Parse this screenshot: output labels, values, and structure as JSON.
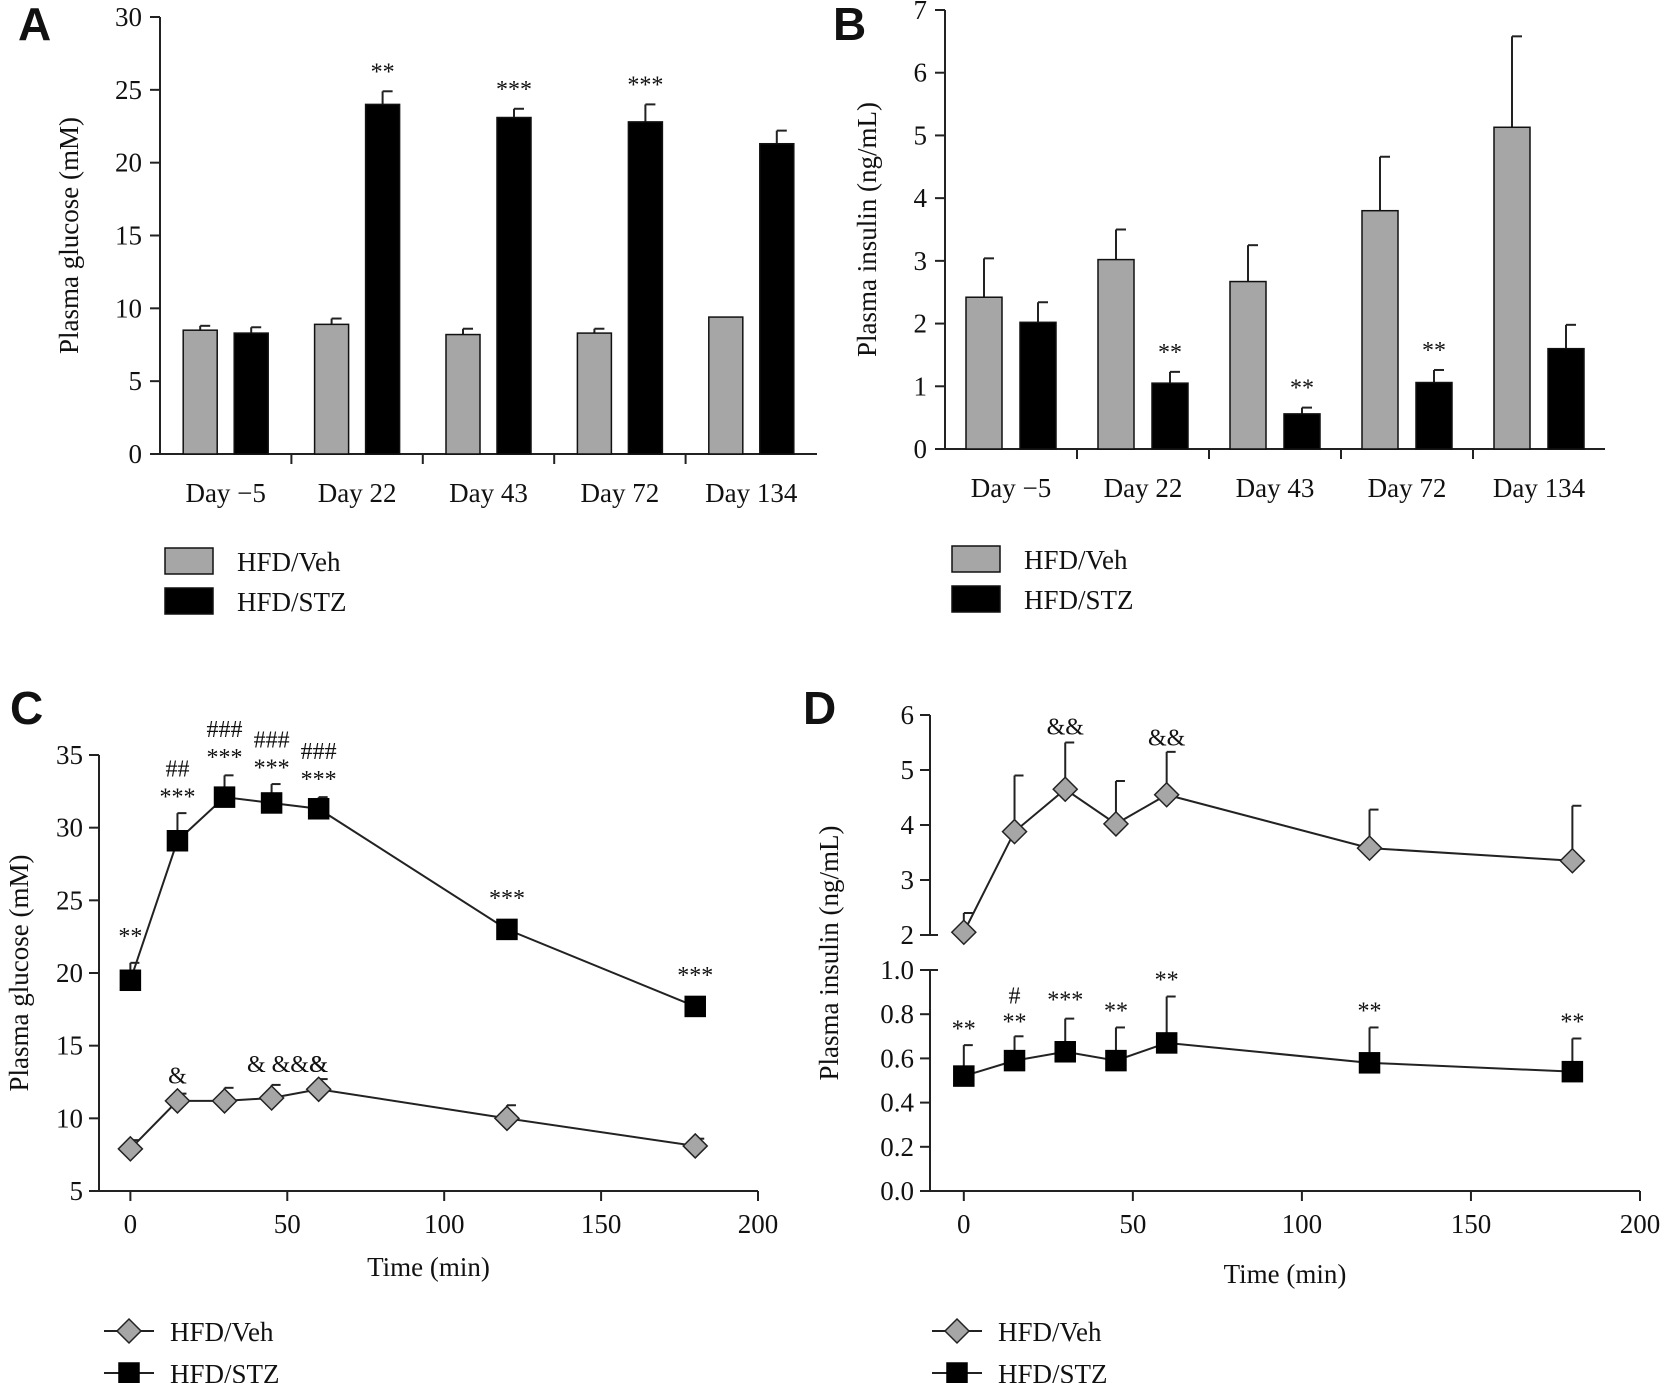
{
  "colors": {
    "veh": "#a6a6a6",
    "stz": "#000000",
    "axis": "#222222"
  },
  "chart_data": [
    {
      "panel": "A",
      "type": "bar",
      "ylabel": "Plasma glucose (mM)",
      "ylim": [
        0,
        30
      ],
      "yticks": [
        "0",
        "5",
        "10",
        "15",
        "20",
        "25",
        "30"
      ],
      "categories": [
        "Day −5",
        "Day 22",
        "Day 43",
        "Day 72",
        "Day 134"
      ],
      "series": [
        {
          "name": "HFD/Veh",
          "color": "#a6a6a6",
          "values": [
            8.5,
            8.9,
            8.2,
            8.3,
            9.4
          ],
          "errors": [
            0.3,
            0.4,
            0.4,
            0.3,
            0
          ]
        },
        {
          "name": "HFD/STZ",
          "color": "#000000",
          "values": [
            8.3,
            24.0,
            23.1,
            22.8,
            21.3
          ],
          "errors": [
            0.4,
            0.9,
            0.6,
            1.2,
            0.9
          ]
        }
      ],
      "annotations": [
        {
          "series": 1,
          "index": 1,
          "text": "**"
        },
        {
          "series": 1,
          "index": 2,
          "text": "***"
        },
        {
          "series": 1,
          "index": 3,
          "text": "***"
        }
      ],
      "legend": [
        "HFD/Veh",
        "HFD/STZ"
      ]
    },
    {
      "panel": "B",
      "type": "bar",
      "ylabel": "Plasma insulin (ng/mL)",
      "ylim": [
        0,
        7
      ],
      "yticks": [
        "0",
        "1",
        "2",
        "3",
        "4",
        "5",
        "6",
        "7"
      ],
      "categories": [
        "Day −5",
        "Day 22",
        "Day 43",
        "Day 72",
        "Day 134"
      ],
      "series": [
        {
          "name": "HFD/Veh",
          "color": "#a6a6a6",
          "values": [
            2.42,
            3.02,
            2.67,
            3.8,
            5.13
          ],
          "errors": [
            0.62,
            0.48,
            0.58,
            0.86,
            1.45
          ]
        },
        {
          "name": "HFD/STZ",
          "color": "#000000",
          "values": [
            2.02,
            1.05,
            0.56,
            1.06,
            1.6
          ],
          "errors": [
            0.32,
            0.18,
            0.1,
            0.2,
            0.38
          ]
        }
      ],
      "annotations": [
        {
          "series": 1,
          "index": 1,
          "text": "**"
        },
        {
          "series": 1,
          "index": 2,
          "text": "**"
        },
        {
          "series": 1,
          "index": 3,
          "text": "**"
        }
      ],
      "legend": [
        "HFD/Veh",
        "HFD/STZ"
      ]
    },
    {
      "panel": "C",
      "type": "line",
      "xlabel": "Time (min)",
      "ylabel": "Plasma glucose (mM)",
      "xlim": [
        -10,
        200
      ],
      "ylim": [
        5,
        35
      ],
      "xticks": [
        "0",
        "50",
        "100",
        "150",
        "200"
      ],
      "yticks": [
        "5",
        "10",
        "15",
        "20",
        "25",
        "30",
        "35"
      ],
      "x": [
        0,
        15,
        30,
        45,
        60,
        120,
        180
      ],
      "series": [
        {
          "name": "HFD/Veh",
          "marker": "diamond",
          "color": "#a6a6a6",
          "values": [
            7.9,
            11.2,
            11.2,
            11.4,
            12.0,
            10.0,
            8.1
          ],
          "errors": [
            0.6,
            0.5,
            0.9,
            0.9,
            0.7,
            0.9,
            0.5
          ]
        },
        {
          "name": "HFD/STZ",
          "marker": "square",
          "color": "#000000",
          "values": [
            19.5,
            29.1,
            32.1,
            31.7,
            31.3,
            23.0,
            17.7
          ],
          "errors": [
            1.2,
            1.9,
            1.5,
            1.3,
            0.8,
            0,
            0
          ]
        }
      ],
      "annotations": [
        {
          "x": 0,
          "y": 22.0,
          "lines": [
            "**"
          ]
        },
        {
          "x": 15,
          "y": 31.6,
          "lines": [
            "##",
            "***"
          ]
        },
        {
          "x": 30,
          "y": 34.3,
          "lines": [
            "###",
            "***"
          ]
        },
        {
          "x": 45,
          "y": 33.6,
          "lines": [
            "###",
            "***"
          ]
        },
        {
          "x": 60,
          "y": 32.8,
          "lines": [
            "###",
            "***"
          ]
        },
        {
          "x": 120,
          "y": 24.6,
          "lines": [
            "***"
          ]
        },
        {
          "x": 180,
          "y": 19.3,
          "lines": [
            "***"
          ]
        },
        {
          "x": 15,
          "y": 12.4,
          "lines": [
            "&"
          ]
        },
        {
          "x": 50,
          "y": 13.2,
          "lines": [
            "& &&&"
          ]
        },
        {
          "x": 60,
          "y": 13.2,
          "lines": [
            "&"
          ]
        }
      ],
      "legend": [
        "HFD/Veh",
        "HFD/STZ"
      ]
    },
    {
      "panel": "D",
      "type": "line",
      "xlabel": "Time (min)",
      "ylabel": "Plasma insulin (ng/mL)",
      "xlim": [
        -10,
        200
      ],
      "ylim_upper": [
        2,
        6
      ],
      "ylim_lower": [
        0.0,
        1.0
      ],
      "xticks": [
        "0",
        "50",
        "100",
        "150",
        "200"
      ],
      "yticks_upper": [
        "2",
        "3",
        "4",
        "5",
        "6"
      ],
      "yticks_lower": [
        "0.0",
        "0.2",
        "0.4",
        "0.6",
        "0.8",
        "1.0"
      ],
      "x": [
        0,
        15,
        30,
        45,
        60,
        120,
        180
      ],
      "series": [
        {
          "name": "HFD/Veh",
          "marker": "diamond",
          "color": "#a6a6a6",
          "values": [
            2.05,
            3.88,
            4.65,
            4.02,
            4.55,
            3.58,
            3.35
          ],
          "errors": [
            0.35,
            1.02,
            0.85,
            0.78,
            0.78,
            0.7,
            1.0
          ]
        },
        {
          "name": "HFD/STZ",
          "marker": "square",
          "color": "#000000",
          "values": [
            0.52,
            0.59,
            0.63,
            0.59,
            0.67,
            0.58,
            0.54
          ],
          "errors": [
            0.14,
            0.11,
            0.15,
            0.15,
            0.21,
            0.16,
            0.15
          ]
        }
      ],
      "annotations": [
        {
          "x": 30,
          "y": 5.65,
          "axis": "upper",
          "lines": [
            "&&"
          ]
        },
        {
          "x": 60,
          "y": 5.45,
          "axis": "upper",
          "lines": [
            "&&"
          ]
        },
        {
          "x": 0,
          "y": 0.7,
          "axis": "lower",
          "lines": [
            "**"
          ]
        },
        {
          "x": 15,
          "y": 0.73,
          "axis": "lower",
          "lines": [
            "#",
            "**"
          ]
        },
        {
          "x": 30,
          "y": 0.83,
          "axis": "lower",
          "lines": [
            "***"
          ]
        },
        {
          "x": 45,
          "y": 0.78,
          "axis": "lower",
          "lines": [
            "**"
          ]
        },
        {
          "x": 60,
          "y": 0.92,
          "axis": "lower",
          "lines": [
            "**"
          ]
        },
        {
          "x": 120,
          "y": 0.78,
          "axis": "lower",
          "lines": [
            "**"
          ]
        },
        {
          "x": 180,
          "y": 0.73,
          "axis": "lower",
          "lines": [
            "**"
          ]
        }
      ],
      "legend": [
        "HFD/Veh",
        "HFD/STZ"
      ]
    }
  ]
}
